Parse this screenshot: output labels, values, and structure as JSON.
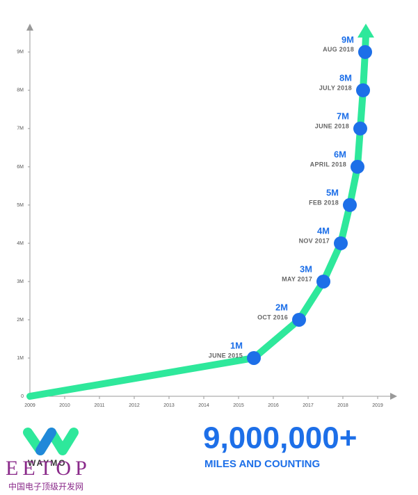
{
  "chart_data": {
    "type": "line",
    "x": [
      2009,
      2015.44,
      2016.74,
      2017.44,
      2017.94,
      2018.2,
      2018.42,
      2018.5,
      2018.58,
      2018.64
    ],
    "series": [
      {
        "color": "#2ee89b",
        "marker_color": "#1d6fe8",
        "values": [
          0,
          1,
          2,
          3,
          4,
          5,
          6,
          7,
          8,
          9
        ],
        "value_labels": [
          null,
          "1M",
          "2M",
          "3M",
          "4M",
          "5M",
          "6M",
          "7M",
          "8M",
          "9M"
        ],
        "date_labels": [
          null,
          "JUNE 2015",
          "OCT 2016",
          "MAY 2017",
          "NOV 2017",
          "FEB 2018",
          "APRIL 2018",
          "JUNE 2018",
          "JULY 2018",
          "AUG 2018"
        ]
      }
    ],
    "xlim": [
      2009,
      2019.48
    ],
    "xticks": [
      2009,
      2010,
      2011,
      2012,
      2013,
      2014,
      2015,
      2016,
      2017,
      2018,
      2019
    ],
    "ylim": [
      0,
      9.67
    ],
    "yticks": [
      0,
      {
        "value": 1,
        "label": "1M"
      },
      {
        "value": 2,
        "label": "2M"
      },
      {
        "value": 3,
        "label": "3M"
      },
      {
        "value": 4,
        "label": "4M"
      },
      {
        "value": 5,
        "label": "5M"
      },
      {
        "value": 6,
        "label": "6M"
      },
      {
        "value": 7,
        "label": "7M"
      },
      {
        "value": 8,
        "label": "8M"
      },
      {
        "value": 9,
        "label": "9M"
      }
    ]
  },
  "footer": {
    "logo_text": "WAYMO",
    "headline": "9,000,000+",
    "subhead": "MILES AND COUNTING",
    "watermark": "EETOP",
    "watermark_sub": "中国电子顶级开发网"
  }
}
